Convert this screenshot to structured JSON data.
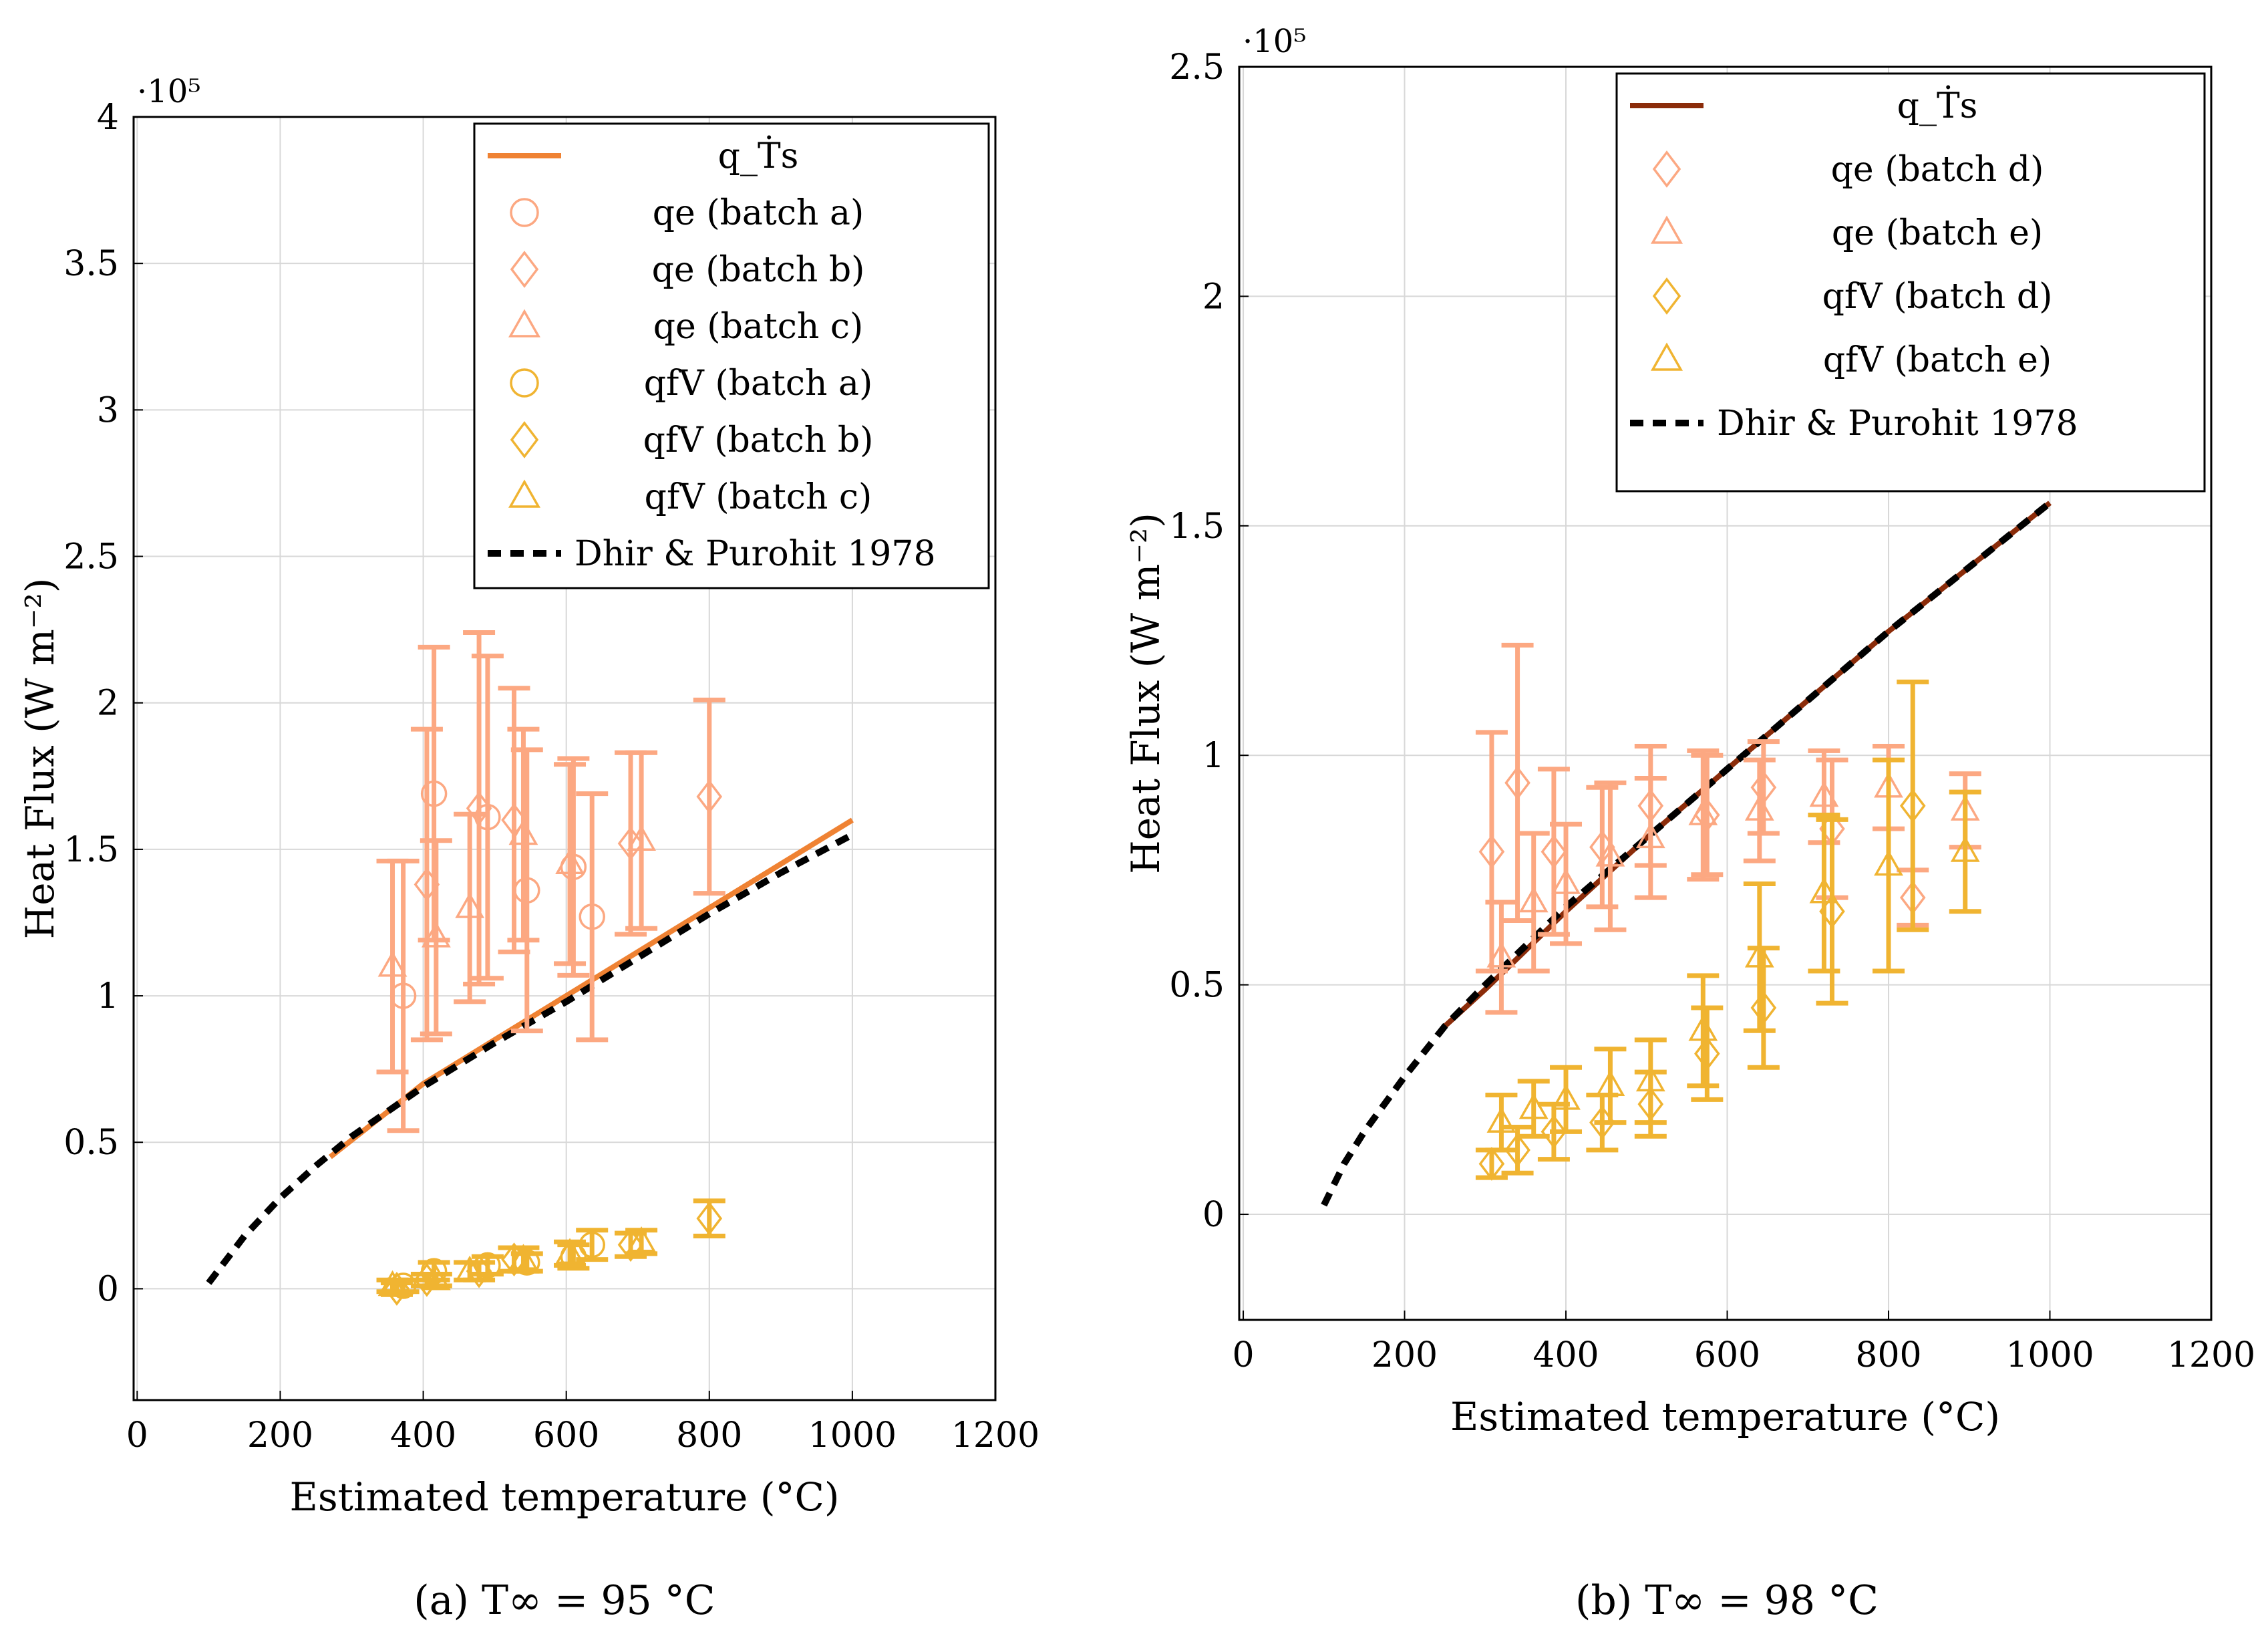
{
  "colors": {
    "qe": "#fca882",
    "qfv": "#f0b431",
    "qT_a": "#ef8233",
    "qT_b": "#8b2c0a",
    "dhir": "#000000"
  },
  "chart_data": [
    {
      "type": "scatter",
      "caption_label": "(a)",
      "caption_expr": "T∞ = 95 °C",
      "xlabel": "Estimated temperature (°C)",
      "ylabel": "Heat Flux (W m⁻²)",
      "y_multiplier": "·10⁵",
      "xlim": [
        -5,
        1200
      ],
      "ylim": [
        -0.38,
        4.0
      ],
      "xticks": [
        0,
        200,
        400,
        600,
        800,
        1000,
        1200
      ],
      "yticks": [
        0,
        0.5,
        1,
        1.5,
        2,
        2.5,
        3,
        3.5,
        4
      ],
      "ytick_labels": [
        "0",
        "0.5",
        "1",
        "1.5",
        "2",
        "2.5",
        "3",
        "3.5",
        "4"
      ],
      "legend": [
        "q_Ṫs",
        "qe (batch a)",
        "qe (batch b)",
        "qe (batch c)",
        "qfV (batch a)",
        "qfV (batch b)",
        "qfV (batch c)",
        "Dhir & Purohit 1978"
      ],
      "legend_position": "top-right",
      "series": [
        {
          "name": "q_Ṫs",
          "kind": "line",
          "color": "#ef8233",
          "x": [
            270,
            400,
            500,
            600,
            700,
            800,
            900,
            1000
          ],
          "y": [
            0.45,
            0.7,
            0.85,
            1.0,
            1.15,
            1.3,
            1.45,
            1.6
          ]
        },
        {
          "name": "Dhir & Purohit 1978",
          "kind": "dashed",
          "color": "#000000",
          "x": [
            100,
            150,
            200,
            250,
            300,
            400,
            500,
            600,
            700,
            800,
            900,
            1000
          ],
          "y": [
            0.02,
            0.18,
            0.31,
            0.42,
            0.52,
            0.69,
            0.84,
            0.98,
            1.13,
            1.28,
            1.42,
            1.55
          ]
        },
        {
          "name": "qe (batch a)",
          "kind": "points",
          "marker": "circle",
          "color": "#fca882",
          "x": [
            372,
            415,
            490,
            545,
            610,
            636
          ],
          "y": [
            1.0,
            1.69,
            1.61,
            1.36,
            1.44,
            1.27
          ],
          "err": [
            0.46,
            0.5,
            0.55,
            0.48,
            0.37,
            0.42
          ]
        },
        {
          "name": "qe (batch b)",
          "kind": "points",
          "marker": "diamond",
          "color": "#fca882",
          "x": [
            405,
            478,
            527,
            690,
            800
          ],
          "y": [
            1.38,
            1.64,
            1.6,
            1.52,
            1.68
          ],
          "err": [
            0.53,
            0.6,
            0.45,
            0.31,
            0.33
          ]
        },
        {
          "name": "qe (batch c)",
          "kind": "points",
          "marker": "triangle",
          "color": "#fca882",
          "x": [
            357,
            418,
            465,
            540,
            605,
            705
          ],
          "y": [
            1.1,
            1.2,
            1.3,
            1.55,
            1.45,
            1.53
          ],
          "err": [
            0.36,
            0.33,
            0.32,
            0.36,
            0.34,
            0.3
          ]
        },
        {
          "name": "qfV (batch a)",
          "kind": "points",
          "marker": "circle",
          "color": "#f0b431",
          "x": [
            372,
            415,
            490,
            545,
            610,
            636
          ],
          "y": [
            0.01,
            0.06,
            0.08,
            0.09,
            0.11,
            0.15
          ],
          "err": [
            0.02,
            0.03,
            0.03,
            0.03,
            0.04,
            0.05
          ]
        },
        {
          "name": "qfV (batch b)",
          "kind": "points",
          "marker": "diamond",
          "color": "#f0b431",
          "x": [
            363,
            405,
            478,
            527,
            690,
            800
          ],
          "y": [
            0.0,
            0.03,
            0.06,
            0.1,
            0.15,
            0.24
          ],
          "err": [
            0.02,
            0.02,
            0.03,
            0.04,
            0.04,
            0.06
          ]
        },
        {
          "name": "qfV (batch c)",
          "kind": "points",
          "marker": "triangle",
          "color": "#f0b431",
          "x": [
            357,
            418,
            465,
            540,
            605,
            705
          ],
          "y": [
            0.01,
            0.03,
            0.06,
            0.1,
            0.12,
            0.16
          ],
          "err": [
            0.02,
            0.02,
            0.03,
            0.04,
            0.04,
            0.04
          ]
        }
      ]
    },
    {
      "type": "scatter",
      "caption_label": "(b)",
      "caption_expr": "T∞ = 98 °C",
      "xlabel": "Estimated temperature (°C)",
      "ylabel": "Heat Flux (W m⁻²)",
      "y_multiplier": "·10⁵",
      "xlim": [
        -5,
        1200
      ],
      "ylim": [
        -0.23,
        2.5
      ],
      "xticks": [
        0,
        200,
        400,
        600,
        800,
        1000,
        1200
      ],
      "yticks": [
        0,
        0.5,
        1,
        1.5,
        2,
        2.5
      ],
      "ytick_labels": [
        "0",
        "0.5",
        "1",
        "1.5",
        "2",
        "2.5"
      ],
      "legend": [
        "q_Ṫs",
        "qe (batch d)",
        "qe (batch e)",
        "qfV (batch d)",
        "qfV (batch e)",
        "Dhir & Purohit 1978"
      ],
      "legend_position": "top-right",
      "series": [
        {
          "name": "q_Ṫs",
          "kind": "line",
          "color": "#8b2c0a",
          "x": [
            250,
            300,
            400,
            500,
            600,
            700,
            800,
            900,
            1000
          ],
          "y": [
            0.41,
            0.49,
            0.66,
            0.82,
            0.97,
            1.12,
            1.27,
            1.41,
            1.55
          ]
        },
        {
          "name": "Dhir & Purohit 1978",
          "kind": "dashed",
          "color": "#000000",
          "x": [
            100,
            125,
            150,
            200,
            250,
            300,
            400,
            500,
            600,
            700,
            800,
            900,
            1000
          ],
          "y": [
            0.02,
            0.11,
            0.18,
            0.3,
            0.41,
            0.5,
            0.67,
            0.82,
            0.97,
            1.12,
            1.27,
            1.41,
            1.55
          ]
        },
        {
          "name": "qe (batch d)",
          "kind": "points",
          "marker": "diamond",
          "color": "#fca882",
          "x": [
            308,
            340,
            385,
            445,
            505,
            575,
            645,
            730,
            830
          ],
          "y": [
            0.79,
            0.94,
            0.79,
            0.8,
            0.89,
            0.87,
            0.93,
            0.84,
            0.69
          ],
          "err": [
            0.26,
            0.3,
            0.18,
            0.13,
            0.13,
            0.13,
            0.1,
            0.15,
            0.06
          ]
        },
        {
          "name": "qe (batch e)",
          "kind": "points",
          "marker": "triangle",
          "color": "#fca882",
          "x": [
            320,
            360,
            400,
            455,
            505,
            570,
            640,
            720,
            800,
            895
          ],
          "y": [
            0.56,
            0.68,
            0.72,
            0.78,
            0.82,
            0.87,
            0.88,
            0.91,
            0.93,
            0.88
          ],
          "err": [
            0.12,
            0.15,
            0.13,
            0.16,
            0.13,
            0.14,
            0.11,
            0.1,
            0.09,
            0.08
          ]
        },
        {
          "name": "qfV (batch d)",
          "kind": "points",
          "marker": "diamond",
          "color": "#f0b431",
          "x": [
            308,
            340,
            385,
            445,
            505,
            575,
            645,
            730,
            830
          ],
          "y": [
            0.11,
            0.14,
            0.18,
            0.2,
            0.24,
            0.35,
            0.45,
            0.66,
            0.89
          ],
          "err": [
            0.03,
            0.05,
            0.06,
            0.06,
            0.07,
            0.1,
            0.13,
            0.2,
            0.27
          ]
        },
        {
          "name": "qfV (batch e)",
          "kind": "points",
          "marker": "triangle",
          "color": "#f0b431",
          "x": [
            320,
            360,
            400,
            455,
            505,
            570,
            640,
            720,
            800,
            895
          ],
          "y": [
            0.2,
            0.23,
            0.25,
            0.28,
            0.29,
            0.4,
            0.56,
            0.7,
            0.76,
            0.79
          ],
          "err": [
            0.06,
            0.06,
            0.07,
            0.08,
            0.09,
            0.12,
            0.16,
            0.17,
            0.23,
            0.13
          ]
        }
      ]
    }
  ]
}
